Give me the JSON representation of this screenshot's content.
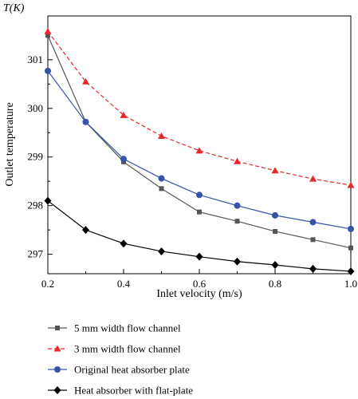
{
  "chart_data": {
    "type": "line",
    "title": "",
    "unit_label": "T(K)",
    "xlabel": "Inlet velocity (m/s)",
    "ylabel": "Outlet temperature",
    "xlim": [
      0.2,
      1.0
    ],
    "ylim": [
      296.6,
      301.9
    ],
    "x_ticks": [
      "0.2",
      "0.4",
      "0.6",
      "0.8",
      "1.0"
    ],
    "y_ticks": [
      "297",
      "298",
      "299",
      "300",
      "301"
    ],
    "x_tick_values": [
      0.2,
      0.4,
      0.6,
      0.8,
      1.0
    ],
    "y_tick_values": [
      297,
      298,
      299,
      300,
      301
    ],
    "grid": false,
    "legend_position": "bottom",
    "x": [
      0.2,
      0.3,
      0.4,
      0.5,
      0.6,
      0.7,
      0.8,
      0.9,
      1.0
    ],
    "series": [
      {
        "name": "5 mm width flow channel",
        "values": [
          301.5,
          299.72,
          298.9,
          298.35,
          297.87,
          297.68,
          297.47,
          297.3,
          297.13
        ],
        "color": "#555555",
        "marker": "square",
        "dash": "solid"
      },
      {
        "name": "3 mm width flow channel",
        "values": [
          301.58,
          300.55,
          299.86,
          299.43,
          299.13,
          298.91,
          298.72,
          298.55,
          298.42
        ],
        "color": "#e8282b",
        "marker": "triangle",
        "dash": "dashed"
      },
      {
        "name": "Original heat absorber plate",
        "values": [
          300.77,
          299.72,
          298.96,
          298.56,
          298.22,
          298.0,
          297.8,
          297.66,
          297.52
        ],
        "color": "#3653a6",
        "marker": "circle",
        "dash": "solid"
      },
      {
        "name": "Heat absorber with flat-plate",
        "values": [
          298.1,
          297.5,
          297.22,
          297.06,
          296.95,
          296.85,
          296.78,
          296.7,
          296.65
        ],
        "color": "#000000",
        "marker": "diamond",
        "dash": "solid"
      }
    ]
  }
}
